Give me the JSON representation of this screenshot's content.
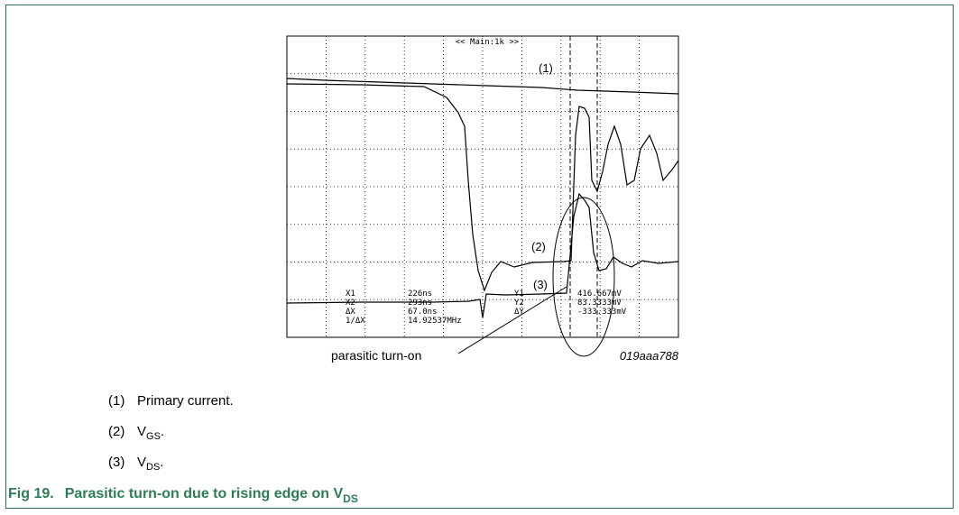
{
  "figure": {
    "scope_header": "<< Main:1k >>",
    "trace_labels": [
      "(1)",
      "(2)",
      "(3)"
    ],
    "readout": [
      [
        "X1",
        "226ns",
        "Y1",
        "416.667mV"
      ],
      [
        "X2",
        "293ns",
        "Y2",
        "83.3333mV"
      ],
      [
        "ΔX",
        "67.0ns",
        "ΔY",
        "-333.333mV"
      ],
      [
        "1/ΔX",
        "14.92537MHz",
        "",
        ""
      ]
    ],
    "annotation": "parasitic turn-on",
    "figure_id": "019aaa788"
  },
  "legend": [
    {
      "number": "(1)",
      "text": "Primary current."
    },
    {
      "number": "(2)",
      "prefix": "V",
      "sub": "GS",
      "suffix": "."
    },
    {
      "number": "(3)",
      "prefix": "V",
      "sub": "DS",
      "suffix": "."
    }
  ],
  "caption": {
    "label": "Fig 19.",
    "text": "Parasitic turn-on due to rising edge on V",
    "sub": "DS"
  }
}
